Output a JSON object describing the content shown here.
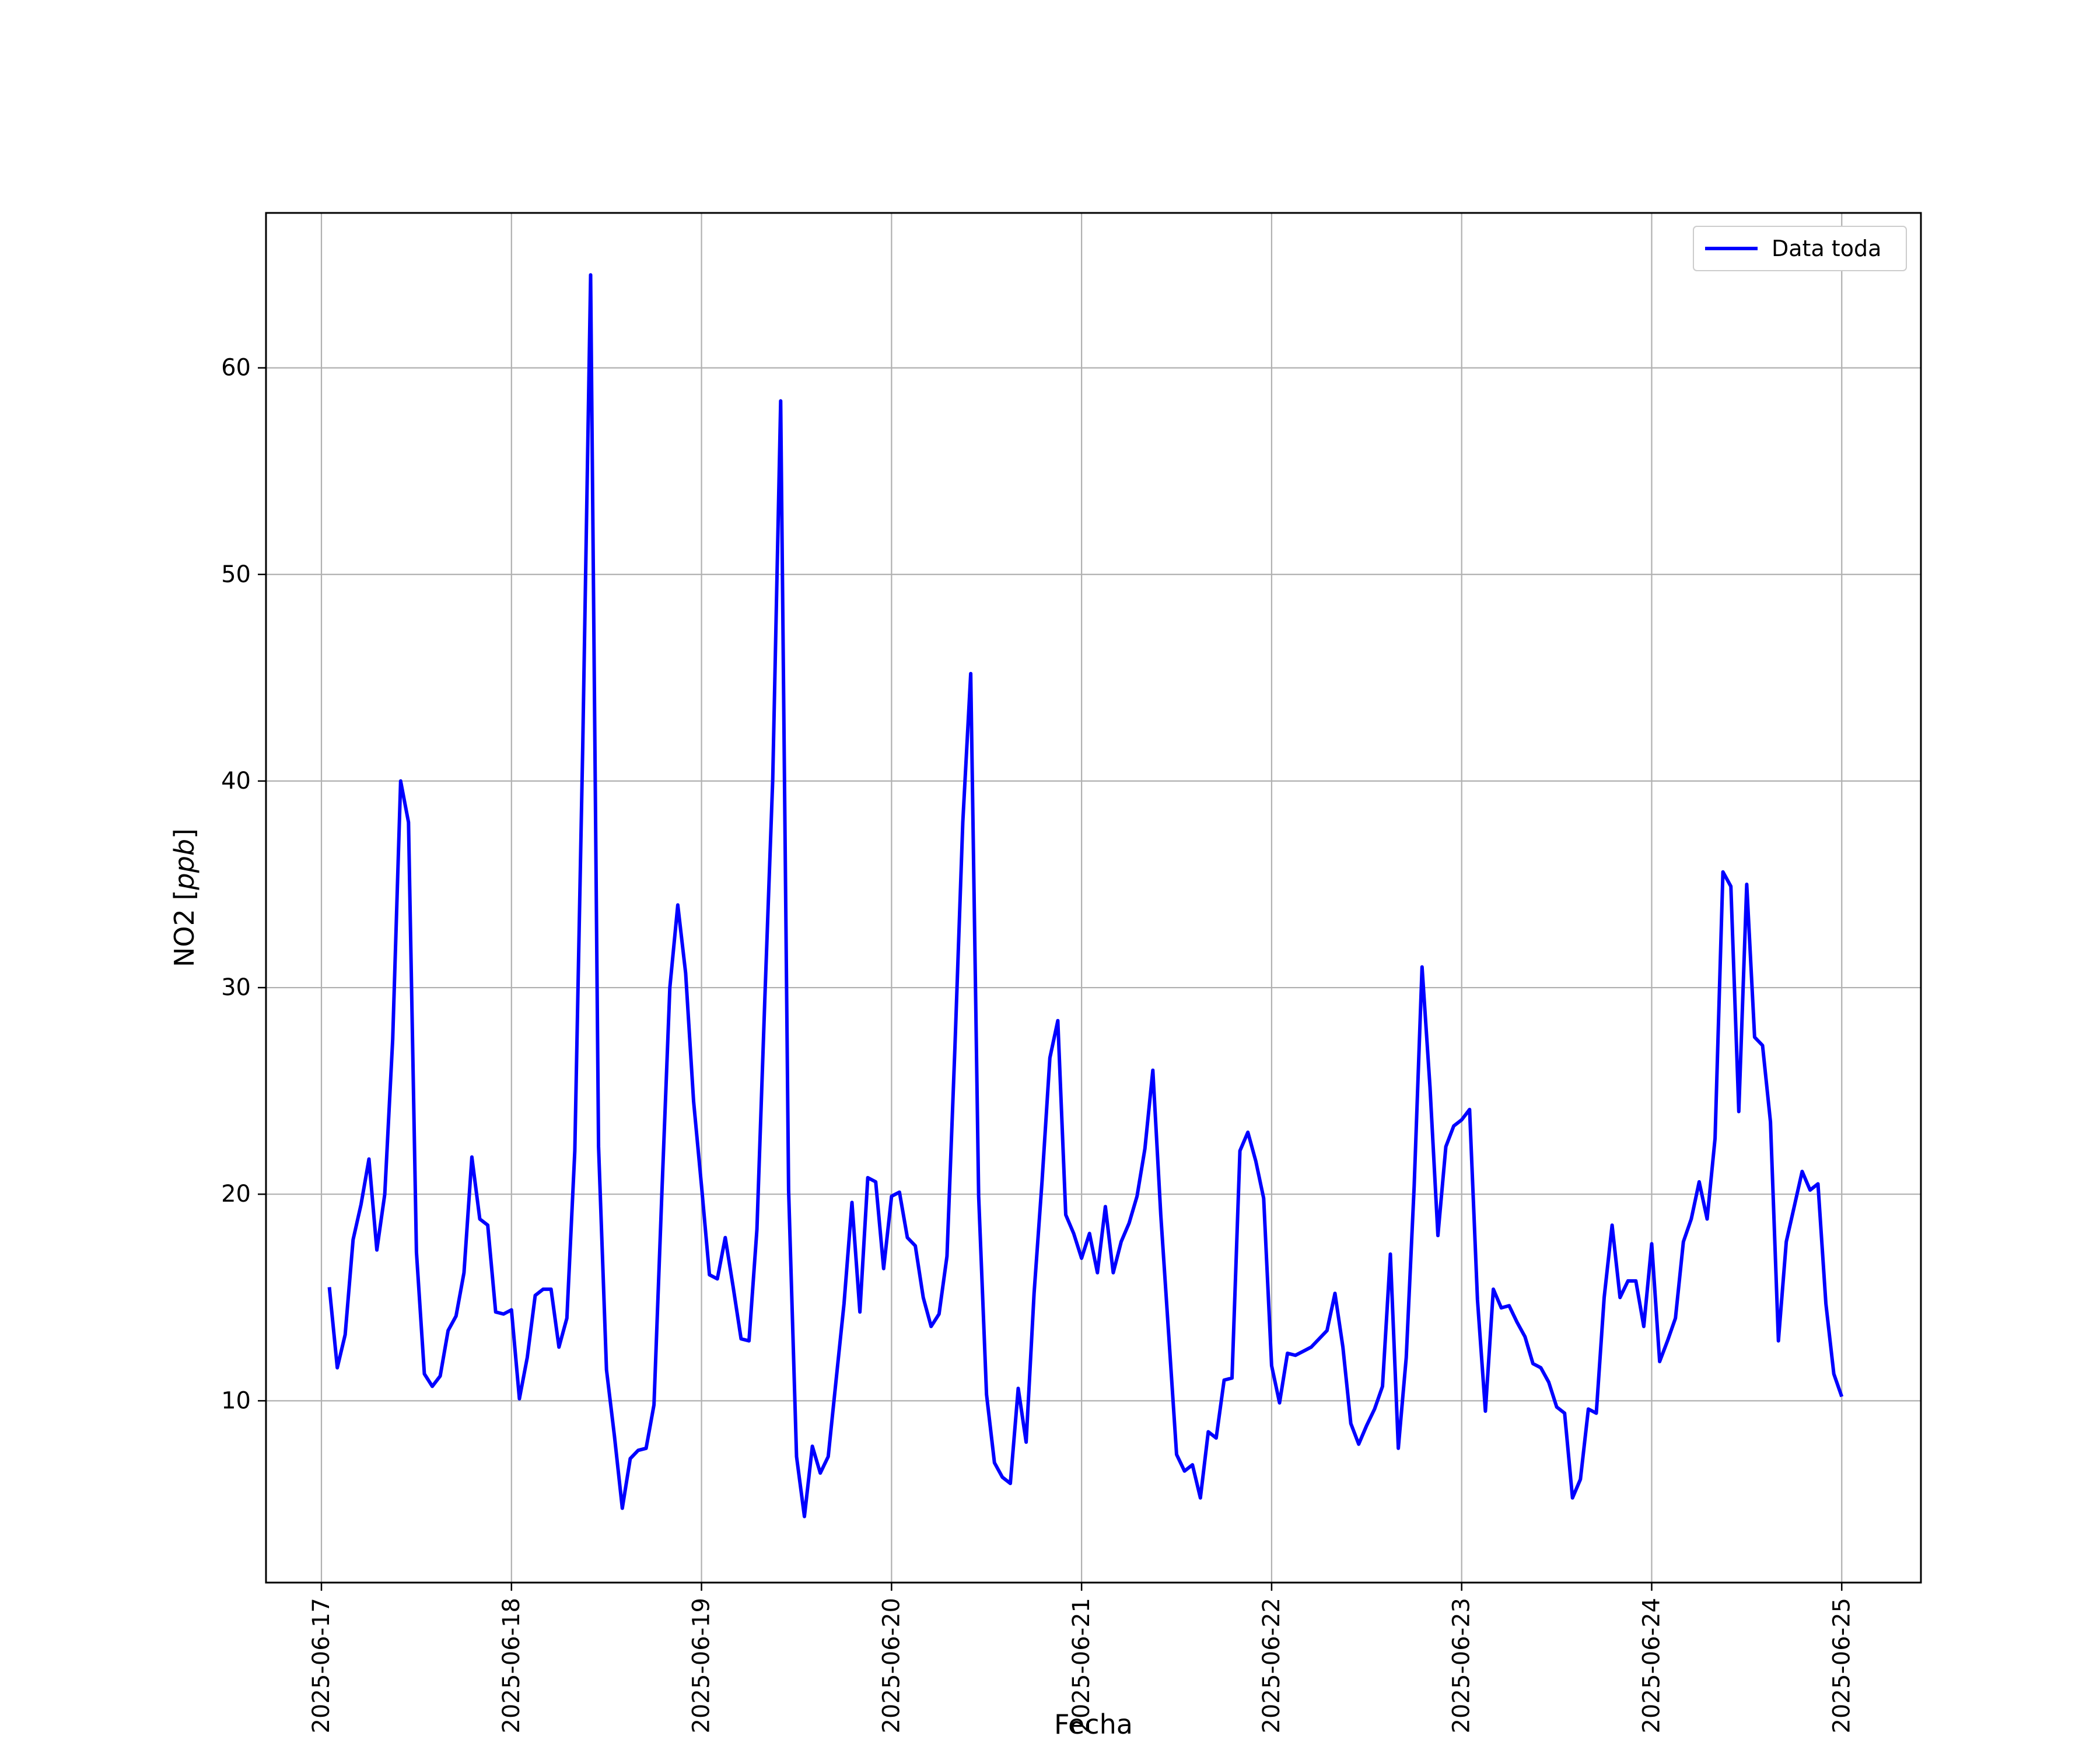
{
  "chart_data": {
    "type": "line",
    "xlabel": "Fecha",
    "ylabel": "NO2 [ppb]",
    "ylabel_parts": {
      "prefix": "NO2 [",
      "unit": "ppb",
      "suffix": "]"
    },
    "xlim": [
      "2025-06-16T17:00",
      "2025-06-25T10:00"
    ],
    "ylim": [
      1.2,
      67.5
    ],
    "x_ticks": [
      "2025-06-17",
      "2025-06-18",
      "2025-06-19",
      "2025-06-20",
      "2025-06-21",
      "2025-06-22",
      "2025-06-23",
      "2025-06-24",
      "2025-06-25"
    ],
    "y_ticks": [
      10,
      20,
      30,
      40,
      50,
      60
    ],
    "grid": true,
    "legend": {
      "placement": "top-right"
    },
    "colors": {
      "line": "#0000ff",
      "grid": "#b0b0b0",
      "frame": "#000000"
    },
    "series": [
      {
        "name": "Data toda",
        "x": [
          "2025-06-17T01:00",
          "2025-06-17T02:00",
          "2025-06-17T03:00",
          "2025-06-17T04:00",
          "2025-06-17T05:00",
          "2025-06-17T06:00",
          "2025-06-17T07:00",
          "2025-06-17T08:00",
          "2025-06-17T09:00",
          "2025-06-17T10:00",
          "2025-06-17T11:00",
          "2025-06-17T12:00",
          "2025-06-17T13:00",
          "2025-06-17T14:00",
          "2025-06-17T15:00",
          "2025-06-17T16:00",
          "2025-06-17T17:00",
          "2025-06-17T18:00",
          "2025-06-17T19:00",
          "2025-06-17T20:00",
          "2025-06-17T21:00",
          "2025-06-17T22:00",
          "2025-06-17T23:00",
          "2025-06-18T00:00",
          "2025-06-18T01:00",
          "2025-06-18T02:00",
          "2025-06-18T03:00",
          "2025-06-18T04:00",
          "2025-06-18T05:00",
          "2025-06-18T06:00",
          "2025-06-18T07:00",
          "2025-06-18T08:00",
          "2025-06-18T09:00",
          "2025-06-18T10:00",
          "2025-06-18T11:00",
          "2025-06-18T12:00",
          "2025-06-18T13:00",
          "2025-06-18T14:00",
          "2025-06-18T15:00",
          "2025-06-18T16:00",
          "2025-06-18T17:00",
          "2025-06-18T18:00",
          "2025-06-18T19:00",
          "2025-06-18T20:00",
          "2025-06-18T21:00",
          "2025-06-18T22:00",
          "2025-06-18T23:00",
          "2025-06-19T00:00",
          "2025-06-19T01:00",
          "2025-06-19T02:00",
          "2025-06-19T03:00",
          "2025-06-19T04:00",
          "2025-06-19T05:00",
          "2025-06-19T06:00",
          "2025-06-19T07:00",
          "2025-06-19T08:00",
          "2025-06-19T09:00",
          "2025-06-19T10:00",
          "2025-06-19T11:00",
          "2025-06-19T12:00",
          "2025-06-19T13:00",
          "2025-06-19T14:00",
          "2025-06-19T15:00",
          "2025-06-19T16:00",
          "2025-06-19T17:00",
          "2025-06-19T18:00",
          "2025-06-19T19:00",
          "2025-06-19T20:00",
          "2025-06-19T21:00",
          "2025-06-19T22:00",
          "2025-06-19T23:00",
          "2025-06-20T00:00",
          "2025-06-20T01:00",
          "2025-06-20T02:00",
          "2025-06-20T03:00",
          "2025-06-20T04:00",
          "2025-06-20T05:00",
          "2025-06-20T06:00",
          "2025-06-20T07:00",
          "2025-06-20T08:00",
          "2025-06-20T09:00",
          "2025-06-20T10:00",
          "2025-06-20T11:00",
          "2025-06-20T12:00",
          "2025-06-20T13:00",
          "2025-06-20T14:00",
          "2025-06-20T15:00",
          "2025-06-20T16:00",
          "2025-06-20T17:00",
          "2025-06-20T18:00",
          "2025-06-20T19:00",
          "2025-06-20T20:00",
          "2025-06-20T21:00",
          "2025-06-20T22:00",
          "2025-06-20T23:00",
          "2025-06-21T00:00",
          "2025-06-21T01:00",
          "2025-06-21T02:00",
          "2025-06-21T03:00",
          "2025-06-21T04:00",
          "2025-06-21T05:00",
          "2025-06-21T06:00",
          "2025-06-21T07:00",
          "2025-06-21T08:00",
          "2025-06-21T09:00",
          "2025-06-21T10:00",
          "2025-06-21T11:00",
          "2025-06-21T12:00",
          "2025-06-21T13:00",
          "2025-06-21T14:00",
          "2025-06-21T15:00",
          "2025-06-21T16:00",
          "2025-06-21T17:00",
          "2025-06-21T18:00",
          "2025-06-21T19:00",
          "2025-06-21T20:00",
          "2025-06-21T21:00",
          "2025-06-21T22:00",
          "2025-06-21T23:00",
          "2025-06-22T00:00",
          "2025-06-22T01:00",
          "2025-06-22T02:00",
          "2025-06-22T03:00",
          "2025-06-22T04:00",
          "2025-06-22T05:00",
          "2025-06-22T06:00",
          "2025-06-22T07:00",
          "2025-06-22T08:00",
          "2025-06-22T09:00",
          "2025-06-22T10:00",
          "2025-06-22T11:00",
          "2025-06-22T12:00",
          "2025-06-22T13:00",
          "2025-06-22T14:00",
          "2025-06-22T15:00",
          "2025-06-22T16:00",
          "2025-06-22T17:00",
          "2025-06-22T18:00",
          "2025-06-22T19:00",
          "2025-06-22T20:00",
          "2025-06-22T21:00",
          "2025-06-22T22:00",
          "2025-06-22T23:00",
          "2025-06-23T00:00",
          "2025-06-23T01:00",
          "2025-06-23T02:00",
          "2025-06-23T03:00",
          "2025-06-23T04:00",
          "2025-06-23T05:00",
          "2025-06-23T06:00",
          "2025-06-23T07:00",
          "2025-06-23T08:00",
          "2025-06-23T09:00",
          "2025-06-23T10:00",
          "2025-06-23T11:00",
          "2025-06-23T12:00",
          "2025-06-23T13:00",
          "2025-06-23T14:00",
          "2025-06-23T15:00",
          "2025-06-23T16:00",
          "2025-06-23T17:00",
          "2025-06-23T18:00",
          "2025-06-23T19:00",
          "2025-06-23T20:00",
          "2025-06-23T21:00",
          "2025-06-23T22:00",
          "2025-06-23T23:00",
          "2025-06-24T00:00",
          "2025-06-24T01:00",
          "2025-06-24T02:00",
          "2025-06-24T03:00",
          "2025-06-24T04:00",
          "2025-06-24T05:00",
          "2025-06-24T06:00",
          "2025-06-24T07:00",
          "2025-06-24T08:00",
          "2025-06-24T09:00",
          "2025-06-24T10:00",
          "2025-06-24T11:00",
          "2025-06-24T12:00",
          "2025-06-24T13:00",
          "2025-06-24T14:00",
          "2025-06-24T15:00",
          "2025-06-24T16:00",
          "2025-06-24T17:00",
          "2025-06-24T18:00",
          "2025-06-24T19:00",
          "2025-06-24T20:00",
          "2025-06-24T21:00",
          "2025-06-24T22:00",
          "2025-06-24T23:00",
          "2025-06-25T00:00"
        ],
        "y": [
          15.5,
          11.6,
          13.2,
          17.8,
          19.5,
          21.7,
          17.3,
          20.0,
          27.5,
          40.0,
          38.0,
          17.2,
          11.3,
          10.7,
          11.2,
          13.4,
          14.1,
          16.2,
          21.8,
          18.8,
          18.5,
          14.3,
          14.2,
          14.4,
          10.1,
          12.1,
          15.1,
          15.4,
          15.4,
          12.6,
          14.0,
          22.1,
          41.7,
          64.5,
          22.3,
          11.5,
          8.3,
          4.8,
          7.2,
          7.6,
          7.7,
          9.8,
          20.1,
          30.0,
          34.0,
          30.7,
          24.5,
          20.4,
          16.1,
          15.9,
          17.9,
          15.5,
          13.0,
          12.9,
          18.3,
          29.5,
          40.1,
          58.4,
          20.2,
          7.3,
          4.4,
          7.8,
          6.5,
          7.3,
          11.0,
          14.7,
          19.6,
          14.3,
          20.8,
          20.6,
          16.4,
          19.9,
          20.1,
          17.9,
          17.5,
          15.0,
          13.6,
          14.2,
          17.0,
          27.1,
          38.0,
          45.2,
          19.9,
          10.3,
          7.0,
          6.3,
          6.0,
          10.6,
          8.0,
          15.2,
          20.6,
          26.6,
          28.4,
          19.0,
          18.1,
          16.9,
          18.1,
          16.2,
          19.4,
          16.2,
          17.7,
          18.6,
          19.9,
          22.2,
          26.0,
          19.0,
          13.2,
          7.4,
          6.6,
          6.9,
          5.3,
          8.5,
          8.2,
          11.0,
          11.1,
          22.1,
          23.0,
          21.6,
          19.8,
          11.7,
          9.9,
          12.3,
          12.2,
          12.4,
          12.6,
          13.0,
          13.4,
          15.2,
          12.6,
          8.9,
          7.9,
          8.8,
          9.6,
          10.7,
          17.1,
          7.7,
          12.1,
          20.4,
          31.0,
          25.2,
          18.0,
          22.3,
          23.3,
          23.6,
          24.1,
          14.9,
          9.5,
          15.4,
          14.5,
          14.6,
          13.8,
          13.1,
          11.8,
          11.6,
          10.9,
          9.7,
          9.4,
          5.3,
          6.2,
          9.6,
          9.4,
          15.0,
          18.5,
          15.0,
          15.8,
          15.8,
          13.6,
          17.6,
          11.9,
          12.9,
          14.0,
          17.7,
          18.8,
          20.6,
          18.8,
          22.7,
          35.6,
          34.9,
          24.0,
          35.0,
          27.6,
          27.2,
          23.5,
          12.9,
          17.7,
          19.4,
          21.1,
          20.2,
          20.5,
          14.7,
          11.3,
          10.2
        ]
      }
    ]
  }
}
